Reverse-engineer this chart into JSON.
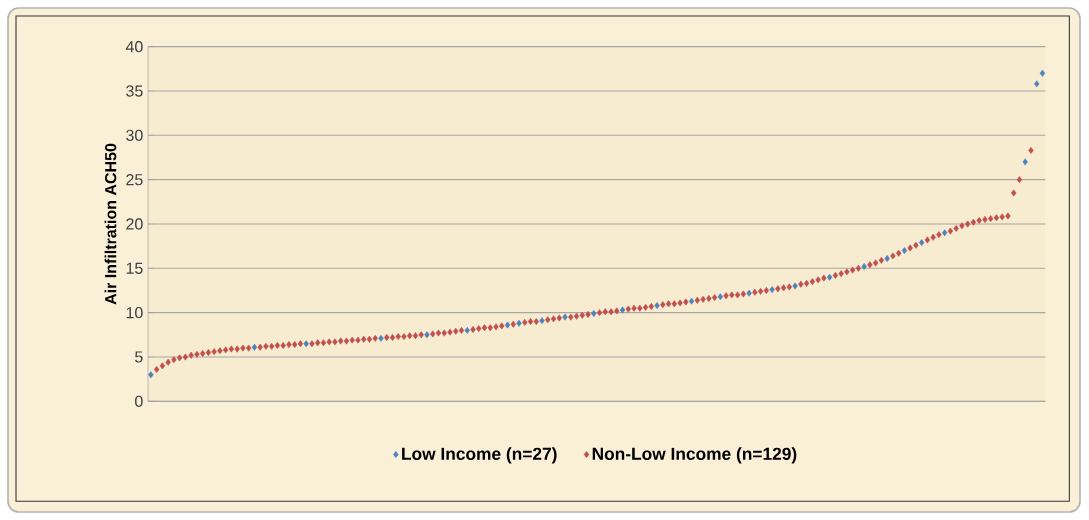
{
  "chart_data": {
    "type": "scatter",
    "ylabel": "Air Infiltration ACH50",
    "categories": [
      null,
      null,
      null,
      null,
      null,
      null,
      null,
      null,
      null,
      null,
      null,
      null,
      null,
      null,
      null,
      null,
      null,
      null,
      null,
      null,
      null,
      null,
      null,
      null,
      null,
      null,
      null,
      null,
      null,
      null,
      null,
      null,
      null,
      null,
      null,
      null,
      null,
      null,
      null,
      null,
      null,
      null,
      null,
      null,
      null,
      null,
      null,
      null,
      null,
      null,
      null,
      null,
      null,
      null,
      null,
      null,
      null,
      null,
      null,
      null,
      null,
      null,
      null,
      null,
      null,
      null,
      null,
      null,
      null,
      null,
      null,
      null,
      null,
      null,
      null,
      null,
      null,
      null,
      null,
      null,
      null,
      null,
      null,
      null,
      null,
      null,
      null,
      null,
      null,
      null,
      null,
      null,
      null,
      null,
      null,
      null,
      null,
      null,
      null,
      null,
      null,
      null,
      null,
      null,
      null,
      null,
      null,
      null,
      null,
      null,
      null,
      null,
      null,
      null,
      null,
      null,
      null,
      null,
      null,
      null,
      null,
      null,
      null,
      null,
      null,
      null,
      null,
      null,
      null,
      null,
      null,
      null,
      null,
      null,
      null,
      null,
      null,
      null,
      null,
      null,
      null,
      null,
      null,
      null,
      null,
      null,
      null,
      null,
      null,
      null,
      null,
      null,
      null,
      null,
      null,
      null
    ],
    "series": [
      {
        "name": "Low Income (n=27)",
        "color": "#4f81bd",
        "values": [
          3.0,
          null,
          null,
          null,
          null,
          null,
          null,
          null,
          null,
          null,
          null,
          null,
          null,
          null,
          null,
          null,
          null,
          null,
          6.1,
          null,
          null,
          null,
          null,
          null,
          null,
          null,
          null,
          6.5,
          null,
          null,
          null,
          null,
          null,
          null,
          null,
          null,
          null,
          null,
          null,
          null,
          7.1,
          null,
          null,
          null,
          null,
          null,
          null,
          null,
          7.5,
          null,
          null,
          null,
          null,
          null,
          null,
          8.0,
          null,
          null,
          null,
          null,
          null,
          null,
          8.6,
          null,
          8.8,
          null,
          null,
          null,
          9.1,
          null,
          null,
          null,
          9.5,
          null,
          null,
          null,
          null,
          9.9,
          null,
          null,
          null,
          null,
          10.3,
          null,
          null,
          null,
          null,
          null,
          10.8,
          null,
          null,
          null,
          null,
          null,
          11.3,
          null,
          null,
          null,
          null,
          11.8,
          null,
          null,
          null,
          null,
          12.2,
          null,
          null,
          null,
          12.6,
          null,
          null,
          null,
          13.0,
          null,
          null,
          null,
          null,
          null,
          14.0,
          null,
          null,
          null,
          null,
          null,
          15.2,
          null,
          null,
          null,
          16.1,
          null,
          null,
          17.0,
          null,
          null,
          17.9,
          null,
          null,
          null,
          19.0,
          null,
          null,
          null,
          null,
          null,
          null,
          null,
          null,
          null,
          null,
          null,
          null,
          null,
          27.0,
          null,
          35.8,
          37.0
        ]
      },
      {
        "name": "Non-Low Income (n=129)",
        "color": "#c0504d",
        "values": [
          null,
          3.6,
          4.0,
          4.4,
          4.7,
          4.9,
          5.0,
          5.2,
          5.3,
          5.4,
          5.5,
          5.6,
          5.7,
          5.8,
          5.9,
          5.9,
          6.0,
          6.0,
          null,
          6.1,
          6.2,
          6.2,
          6.3,
          6.3,
          6.4,
          6.4,
          6.5,
          null,
          6.5,
          6.6,
          6.6,
          6.7,
          6.7,
          6.8,
          6.8,
          6.9,
          6.9,
          7.0,
          7.0,
          7.1,
          null,
          7.2,
          7.2,
          7.3,
          7.3,
          7.4,
          7.4,
          7.5,
          null,
          7.6,
          7.7,
          7.7,
          7.8,
          7.9,
          8.0,
          null,
          8.1,
          8.2,
          8.3,
          8.3,
          8.4,
          8.5,
          null,
          8.7,
          null,
          8.9,
          9.0,
          9.0,
          null,
          9.2,
          9.3,
          9.4,
          null,
          9.5,
          9.6,
          9.7,
          9.8,
          null,
          10.0,
          10.1,
          10.1,
          10.2,
          null,
          10.4,
          10.5,
          10.5,
          10.6,
          10.7,
          null,
          10.9,
          11.0,
          11.0,
          11.1,
          11.2,
          null,
          11.4,
          11.5,
          11.6,
          11.7,
          null,
          11.9,
          12.0,
          12.0,
          12.1,
          null,
          12.3,
          12.4,
          12.5,
          null,
          12.7,
          12.8,
          12.9,
          null,
          13.2,
          13.3,
          13.5,
          13.7,
          13.9,
          null,
          14.2,
          14.4,
          14.6,
          14.8,
          15.0,
          null,
          15.4,
          15.6,
          15.9,
          null,
          16.4,
          16.7,
          null,
          17.3,
          17.6,
          null,
          18.2,
          18.5,
          18.8,
          null,
          19.2,
          19.5,
          19.8,
          20.0,
          20.2,
          20.4,
          20.5,
          20.6,
          20.7,
          20.8,
          20.9,
          23.5,
          25.0,
          null,
          28.3,
          null,
          null
        ]
      }
    ],
    "ylim": [
      0,
      40
    ],
    "yticks": [
      0,
      5,
      10,
      15,
      20,
      25,
      30,
      35,
      40
    ],
    "grid": "y",
    "legend": "bottom",
    "marker": "diamond"
  }
}
